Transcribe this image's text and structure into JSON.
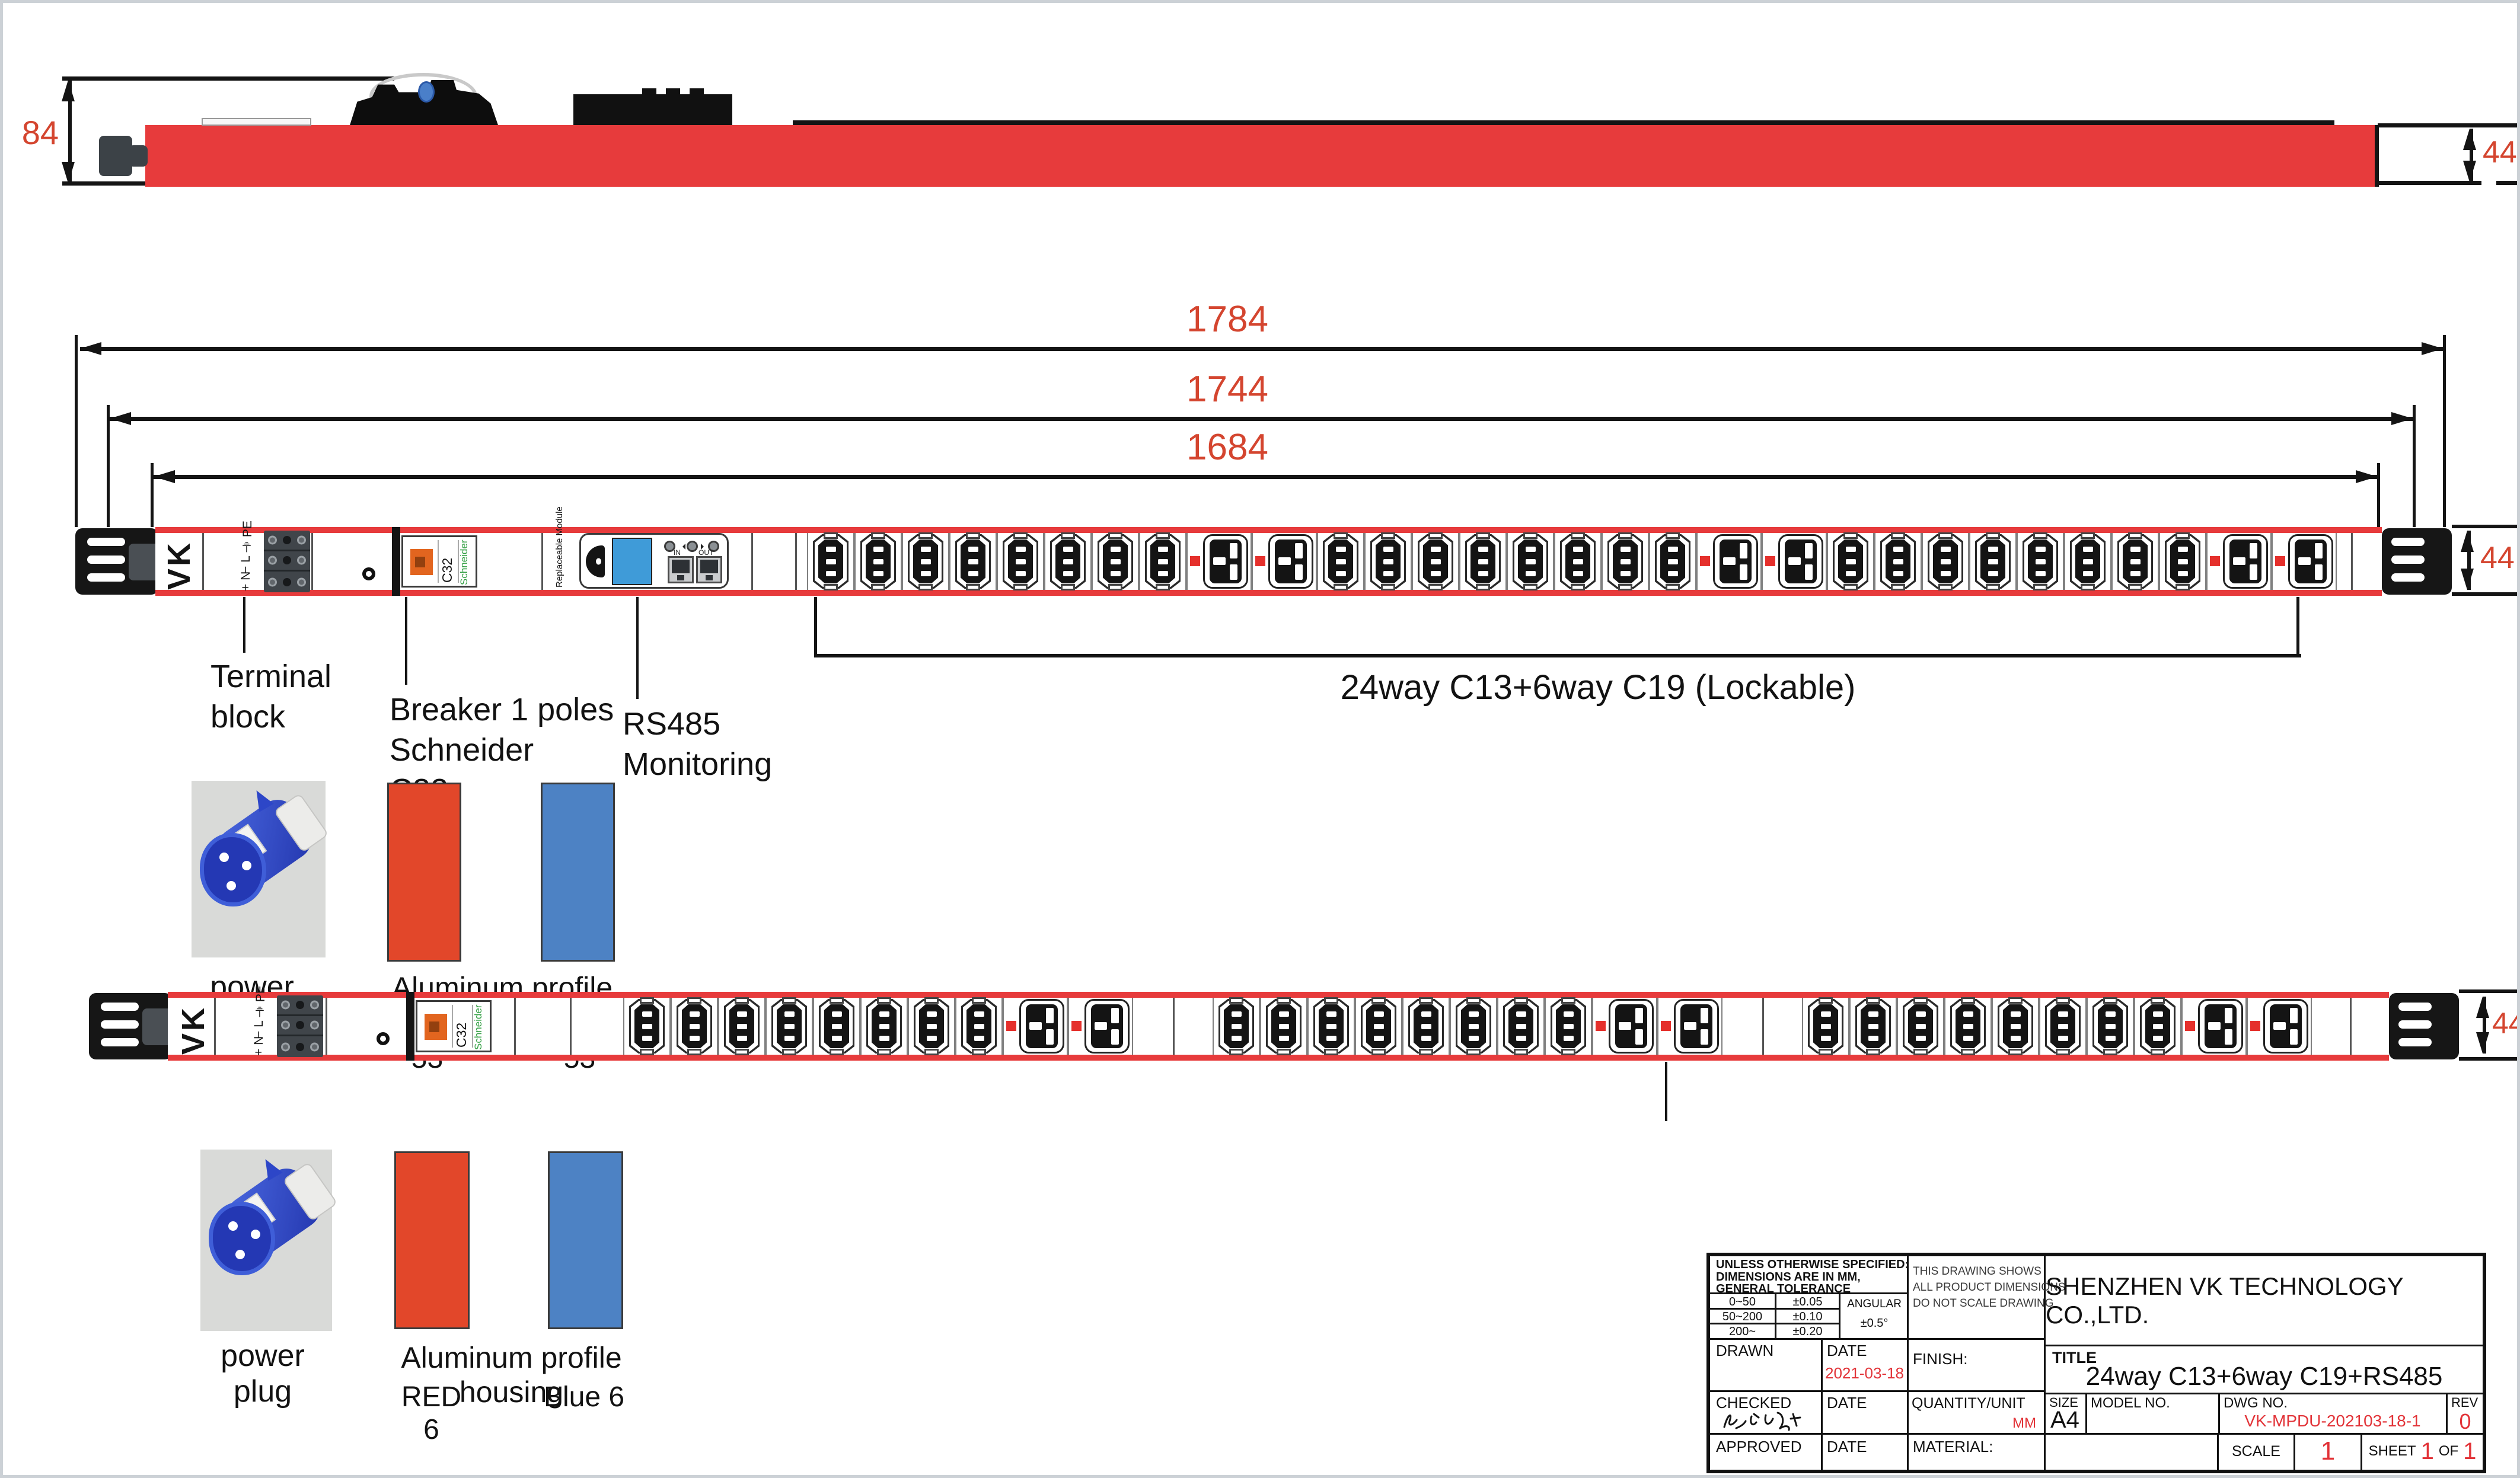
{
  "colors": {
    "bar_red": "#e73b3c",
    "dim_red": "#d4452f",
    "accent_red": "#e23338",
    "swatch_red": "#e2472a",
    "swatch_blue": "#4d82c4",
    "lcd_blue": "#3f9bd8",
    "led_red": "#e5302c",
    "breaker_orange": "#e2651f"
  },
  "dims": {
    "height": "84",
    "depth": "44",
    "overall": "1784",
    "mounting": "1744",
    "body": "1684"
  },
  "pdu": {
    "logo": "VK",
    "terminal_rows": [
      "⏚ PE",
      "− L",
      "+ N"
    ],
    "breaker": {
      "model": "C32",
      "brand": "Schneider"
    },
    "module": {
      "name": "Replaceable Module",
      "port_in": "IN",
      "port_out": "OUT"
    }
  },
  "outlets": {
    "row1": {
      "groups": [
        {
          "c13": 8,
          "c19": 2
        },
        {
          "c13": 8,
          "c19": 2
        },
        {
          "c13": 8,
          "c19": 2
        }
      ]
    },
    "row2": {
      "groups": [
        {
          "c13": 8,
          "c19": 2
        },
        {
          "c13": 8,
          "c19": 2
        },
        {
          "c13": 8,
          "c19": 2
        }
      ]
    }
  },
  "annotations": {
    "terminal": "Terminal\nblock",
    "breaker": "Breaker 1 poles\nSchneider\nC32",
    "rs485": "RS485\nMonitoring",
    "outlets": "24way C13+6way C19 (Lockable)",
    "power_plug": "power plug",
    "housing": "Aluminum profile housing",
    "red53": "RED 53",
    "blue53": "Blue  53",
    "red6": "RED 6",
    "blue6": "Blue  6"
  },
  "tb": {
    "note": "UNLESS OTHERWISE SPECIFIED:\nDIMENSIONS ARE IN MM,\nGENERAL TOLERANCE",
    "tol": [
      [
        "0~50",
        "±0.05"
      ],
      [
        "50~200",
        "±0.10"
      ],
      [
        "200~",
        "±0.20"
      ]
    ],
    "angular_label": "ANGULAR",
    "angular_value": "±0.5°",
    "drawing_note": "THIS DRAWING SHOWS\nALL PRODUCT DIMENSIONS\nDO NOT SCALE DRAWING",
    "company": "SHENZHEN VK TECHNOLOGY CO.,LTD.",
    "title_label": "TITLE",
    "title": "24way C13+6way C19+RS485",
    "drawn": "DRAWN",
    "checked": "CHECKED",
    "approved": "APPROVED",
    "date": "DATE",
    "drawn_date": "2021-03-18",
    "finish": "FINISH:",
    "quantity": "QUANTITY/UNIT",
    "unit": "MM",
    "material": "MATERIAL:",
    "size_label": "SIZE",
    "size": "A4",
    "model_label": "MODEL NO.",
    "dwg_label": "DWG NO.",
    "dwg_no": "VK-MPDU-202103-18-1",
    "rev_label": "REV",
    "rev": "0",
    "scale_label": "SCALE",
    "scale": "1",
    "sheet_label": "SHEET",
    "of_label": "OF",
    "sheet_num": "1",
    "sheet_total": "1"
  }
}
